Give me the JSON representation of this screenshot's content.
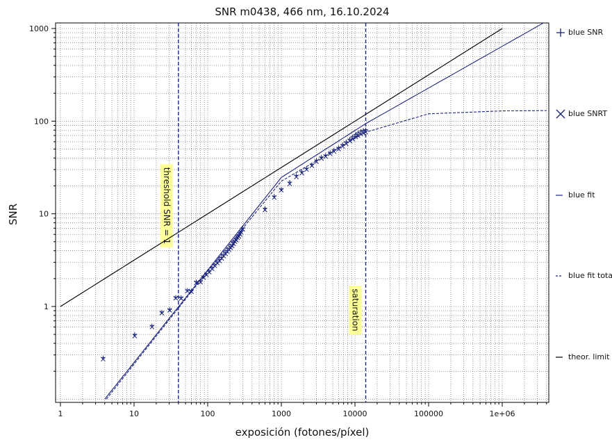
{
  "chart_data": {
    "type": "scatter",
    "title": "SNR m0438,  466 nm, 16.10.2024",
    "xlabel": "exposición (fotones/píxel)",
    "ylabel": "SNR",
    "x_scale": "log",
    "y_scale": "log",
    "xlim": [
      1,
      4000000
    ],
    "ylim": [
      0.1,
      1000
    ],
    "x_ticks": [
      1,
      10,
      100,
      1000,
      10000,
      100000,
      1000000
    ],
    "x_tick_labels": [
      "1",
      "10",
      "100",
      "1000",
      "10000",
      "100000",
      "1e+06"
    ],
    "y_ticks": [
      1,
      10,
      100,
      1000
    ],
    "y_tick_labels": [
      "1",
      "10",
      "100",
      "1000"
    ],
    "grid": true,
    "legend_position": "right",
    "colors": {
      "series": "#1a237e",
      "theory": "#000000"
    },
    "series": [
      {
        "name": "blue SNR",
        "marker": "plus",
        "color": "#1a237e",
        "x": [
          3.8,
          10.2,
          17.5,
          23.8,
          30.5,
          36.8,
          43.5,
          53,
          60,
          70,
          80,
          88,
          96,
          105,
          115,
          125,
          135,
          145,
          155,
          165,
          175,
          185,
          195,
          205,
          215,
          225,
          235,
          245,
          255,
          265,
          275,
          285,
          300,
          600,
          800,
          1000,
          1300,
          1600,
          1900,
          2200,
          2600,
          3000,
          3500,
          4000,
          4600,
          5200,
          6000,
          6800,
          7600,
          8500,
          9300,
          10200,
          11000,
          12000,
          13000,
          14000
        ],
        "y": [
          0.28,
          0.5,
          0.62,
          0.87,
          0.93,
          1.26,
          1.25,
          1.5,
          1.48,
          1.85,
          1.88,
          2.1,
          2.25,
          2.4,
          2.6,
          2.8,
          3.0,
          3.2,
          3.4,
          3.6,
          3.8,
          4.0,
          4.2,
          4.4,
          4.6,
          4.9,
          5.1,
          5.4,
          5.6,
          5.9,
          6.2,
          6.5,
          7.0,
          11.5,
          15.5,
          18.5,
          22,
          26,
          28.5,
          31,
          34,
          38,
          41,
          43,
          46,
          49,
          52,
          56,
          60,
          64,
          68,
          72,
          75,
          78,
          80,
          81
        ]
      },
      {
        "name": "blue SNRT",
        "marker": "cross",
        "color": "#1a237e",
        "x": [
          3.8,
          10.2,
          17.5,
          23.8,
          30.5,
          36.8,
          43.5,
          53,
          60,
          70,
          80,
          88,
          96,
          105,
          115,
          125,
          135,
          145,
          155,
          165,
          175,
          185,
          195,
          205,
          215,
          225,
          235,
          245,
          255,
          265,
          275,
          285,
          300,
          600,
          800,
          1000,
          1300,
          1600,
          1900,
          2200,
          2600,
          3000,
          3500,
          4000,
          4600,
          5200,
          6000,
          6800,
          7600,
          8500,
          9300,
          10200,
          11000,
          12000,
          13000,
          14000
        ],
        "y": [
          0.27,
          0.48,
          0.6,
          0.85,
          0.91,
          1.23,
          1.22,
          1.47,
          1.45,
          1.8,
          1.83,
          2.05,
          2.2,
          2.35,
          2.55,
          2.75,
          2.95,
          3.1,
          3.3,
          3.5,
          3.7,
          3.9,
          4.1,
          4.3,
          4.5,
          4.75,
          5.0,
          5.2,
          5.5,
          5.7,
          6.0,
          6.3,
          6.8,
          11.0,
          15.0,
          18.0,
          21,
          25,
          27.5,
          30,
          33,
          36.5,
          39.5,
          41.5,
          44.5,
          47,
          50,
          53.5,
          57,
          61,
          64,
          67.5,
          70,
          72.5,
          74.5,
          76
        ]
      },
      {
        "name": "blue fit",
        "line": "solid",
        "color": "#1a237e",
        "x": [
          4,
          100,
          1000,
          14000,
          4000000
        ],
        "y": [
          0.1,
          2.47,
          24.7,
          94,
          1200
        ]
      },
      {
        "name": "blue fit total",
        "line": "dashed",
        "color": "#1a237e",
        "x": [
          4.2,
          100,
          1000,
          14000,
          100000,
          1000000,
          4000000
        ],
        "y": [
          0.1,
          2.4,
          22.5,
          76,
          120,
          129,
          130
        ]
      },
      {
        "name": "theor. limit",
        "line": "solid",
        "color": "#000000",
        "x": [
          1,
          1000000
        ],
        "y": [
          1,
          1000
        ]
      }
    ],
    "annotations": [
      {
        "text": "threshold SNR = 1",
        "x": 40
      },
      {
        "text": "saturation",
        "x": 14000
      }
    ]
  }
}
